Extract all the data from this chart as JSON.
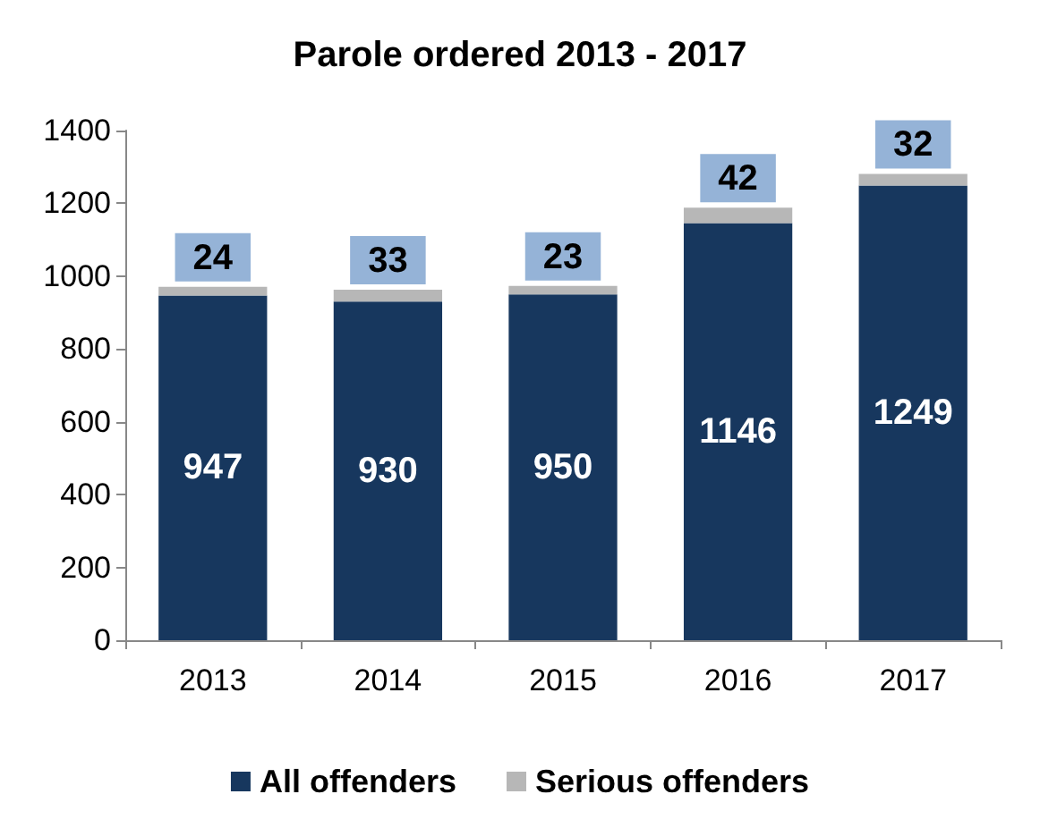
{
  "chart_data": {
    "type": "bar",
    "title": "Parole ordered 2013 - 2017",
    "categories": [
      "2013",
      "2014",
      "2015",
      "2016",
      "2017"
    ],
    "stacked": true,
    "series": [
      {
        "name": "All offenders",
        "color": "#17375e",
        "values": [
          947,
          930,
          950,
          1146,
          1249
        ]
      },
      {
        "name": "Serious offenders",
        "color": "#b7b7b7",
        "values": [
          24,
          33,
          23,
          42,
          32
        ]
      }
    ],
    "ylim": [
      0,
      1400
    ],
    "yticks": [
      0,
      200,
      400,
      600,
      800,
      1000,
      1200,
      1400
    ],
    "grid": false,
    "legend": "bottom",
    "data_labels": true
  }
}
